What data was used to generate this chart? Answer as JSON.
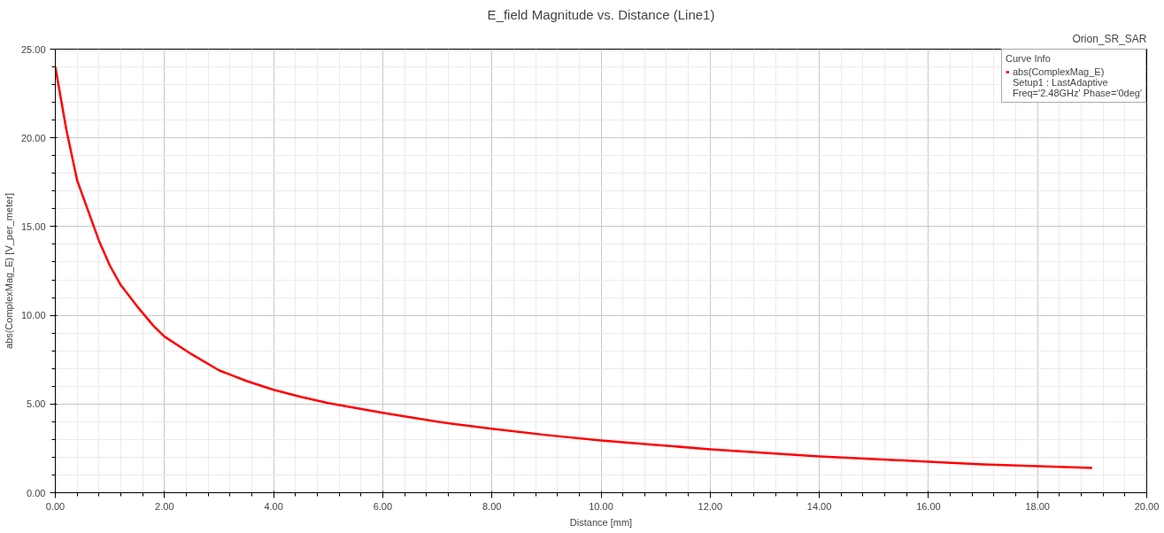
{
  "chart_data": {
    "type": "line",
    "title": "E_field Magnitude vs. Distance (Line1)",
    "xlabel": "Distance [mm]",
    "ylabel": "abs(ComplexMag_E) [V_per_meter]",
    "legend_title": "Curve Info",
    "x": [
      0,
      0.2,
      0.4,
      0.6,
      0.8,
      1.0,
      1.2,
      1.5,
      1.8,
      2.0,
      2.5,
      3.0,
      3.5,
      4.0,
      4.5,
      5.0,
      6.0,
      7.0,
      8.0,
      9.0,
      10.0,
      11.0,
      12.0,
      13.0,
      14.0,
      15.0,
      16.0,
      17.0,
      18.0,
      19.0
    ],
    "series": [
      {
        "name": "abs(ComplexMag_E)",
        "color": "#ff0000",
        "values": [
          24.0,
          20.5,
          17.6,
          15.9,
          14.2,
          12.8,
          11.7,
          10.5,
          9.4,
          8.8,
          7.8,
          6.9,
          6.3,
          5.8,
          5.4,
          5.05,
          4.5,
          4.0,
          3.6,
          3.25,
          2.95,
          2.7,
          2.45,
          2.25,
          2.05,
          1.9,
          1.75,
          1.6,
          1.5,
          1.4
        ]
      }
    ],
    "xlim": [
      0,
      20
    ],
    "ylim": [
      0,
      25
    ],
    "xticks": [
      {
        "value": 0,
        "label": "0.00"
      },
      {
        "value": 2,
        "label": "2.00"
      },
      {
        "value": 4,
        "label": "4.00"
      },
      {
        "value": 6,
        "label": "6.00"
      },
      {
        "value": 8,
        "label": "8.00"
      },
      {
        "value": 10,
        "label": "10.00"
      },
      {
        "value": 12,
        "label": "12.00"
      },
      {
        "value": 14,
        "label": "14.00"
      },
      {
        "value": 16,
        "label": "16.00"
      },
      {
        "value": 18,
        "label": "18.00"
      },
      {
        "value": 20,
        "label": "20.00"
      }
    ],
    "yticks": [
      {
        "value": 0,
        "label": "0.00"
      },
      {
        "value": 5,
        "label": "5.00"
      },
      {
        "value": 10,
        "label": "10.00"
      },
      {
        "value": 15,
        "label": "15.00"
      },
      {
        "value": 20,
        "label": "20.00"
      },
      {
        "value": 25,
        "label": "25.00"
      }
    ],
    "annotations": [
      "Orion_SR_SAR",
      "Setup1 : LastAdaptive",
      "Freq='2.48GHz' Phase='0deg'"
    ],
    "grid": true,
    "legend": "top right",
    "marker": "none",
    "line_style": "solid"
  }
}
